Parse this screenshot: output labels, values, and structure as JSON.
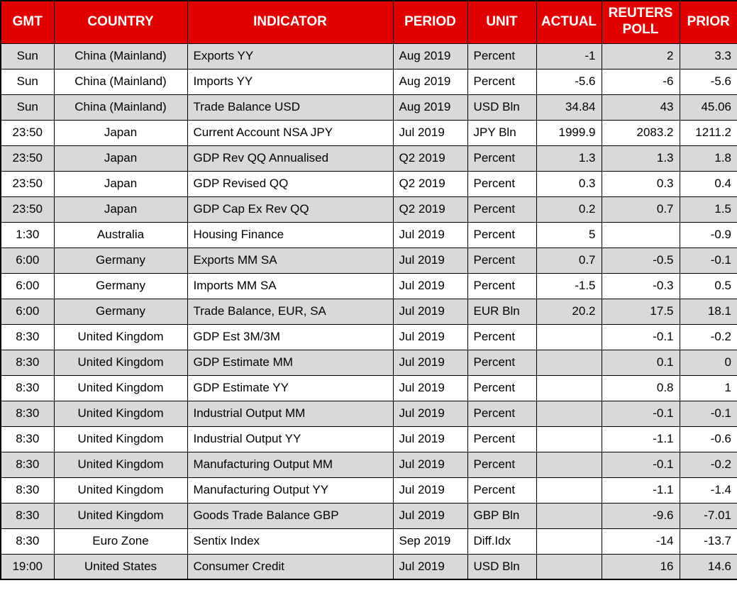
{
  "colors": {
    "header_bg": "#e00000",
    "header_text": "#ffffff",
    "row_alt_bg": "#d9d9d9",
    "row_bg": "#ffffff",
    "border": "#000000"
  },
  "chart_data": {
    "type": "table",
    "title": "",
    "columns": [
      {
        "key": "gmt",
        "label": "GMT"
      },
      {
        "key": "country",
        "label": "COUNTRY"
      },
      {
        "key": "indicator",
        "label": "INDICATOR"
      },
      {
        "key": "period",
        "label": "PERIOD"
      },
      {
        "key": "unit",
        "label": "UNIT"
      },
      {
        "key": "actual",
        "label": "ACTUAL"
      },
      {
        "key": "poll",
        "label": "REUTERS POLL"
      },
      {
        "key": "prior",
        "label": "PRIOR"
      }
    ],
    "rows": [
      {
        "gmt": "Sun",
        "country": "China (Mainland)",
        "indicator": "Exports YY",
        "period": "Aug 2019",
        "unit": "Percent",
        "actual": "-1",
        "poll": "2",
        "prior": "3.3"
      },
      {
        "gmt": "Sun",
        "country": "China (Mainland)",
        "indicator": "Imports YY",
        "period": "Aug 2019",
        "unit": "Percent",
        "actual": "-5.6",
        "poll": "-6",
        "prior": "-5.6"
      },
      {
        "gmt": "Sun",
        "country": "China (Mainland)",
        "indicator": "Trade Balance USD",
        "period": "Aug 2019",
        "unit": "USD Bln",
        "actual": "34.84",
        "poll": "43",
        "prior": "45.06"
      },
      {
        "gmt": "23:50",
        "country": "Japan",
        "indicator": "Current Account NSA JPY",
        "period": "Jul 2019",
        "unit": "JPY Bln",
        "actual": "1999.9",
        "poll": "2083.2",
        "prior": "1211.2"
      },
      {
        "gmt": "23:50",
        "country": "Japan",
        "indicator": "GDP Rev QQ Annualised",
        "period": "Q2 2019",
        "unit": "Percent",
        "actual": "1.3",
        "poll": "1.3",
        "prior": "1.8"
      },
      {
        "gmt": "23:50",
        "country": "Japan",
        "indicator": "GDP Revised QQ",
        "period": "Q2 2019",
        "unit": "Percent",
        "actual": "0.3",
        "poll": "0.3",
        "prior": "0.4"
      },
      {
        "gmt": "23:50",
        "country": "Japan",
        "indicator": "GDP Cap Ex Rev QQ",
        "period": "Q2 2019",
        "unit": "Percent",
        "actual": "0.2",
        "poll": "0.7",
        "prior": "1.5"
      },
      {
        "gmt": "1:30",
        "country": "Australia",
        "indicator": "Housing Finance",
        "period": "Jul 2019",
        "unit": "Percent",
        "actual": "5",
        "poll": "",
        "prior": "-0.9"
      },
      {
        "gmt": "6:00",
        "country": "Germany",
        "indicator": "Exports MM SA",
        "period": "Jul 2019",
        "unit": "Percent",
        "actual": "0.7",
        "poll": "-0.5",
        "prior": "-0.1"
      },
      {
        "gmt": "6:00",
        "country": "Germany",
        "indicator": "Imports MM SA",
        "period": "Jul 2019",
        "unit": "Percent",
        "actual": "-1.5",
        "poll": "-0.3",
        "prior": "0.5"
      },
      {
        "gmt": "6:00",
        "country": "Germany",
        "indicator": "Trade Balance, EUR, SA",
        "period": "Jul 2019",
        "unit": "EUR Bln",
        "actual": "20.2",
        "poll": "17.5",
        "prior": "18.1"
      },
      {
        "gmt": "8:30",
        "country": "United Kingdom",
        "indicator": "GDP Est 3M/3M",
        "period": "Jul 2019",
        "unit": "Percent",
        "actual": "",
        "poll": "-0.1",
        "prior": "-0.2"
      },
      {
        "gmt": "8:30",
        "country": "United Kingdom",
        "indicator": "GDP Estimate MM",
        "period": "Jul 2019",
        "unit": "Percent",
        "actual": "",
        "poll": "0.1",
        "prior": "0"
      },
      {
        "gmt": "8:30",
        "country": "United Kingdom",
        "indicator": "GDP Estimate YY",
        "period": "Jul 2019",
        "unit": "Percent",
        "actual": "",
        "poll": "0.8",
        "prior": "1"
      },
      {
        "gmt": "8:30",
        "country": "United Kingdom",
        "indicator": "Industrial Output MM",
        "period": "Jul 2019",
        "unit": "Percent",
        "actual": "",
        "poll": "-0.1",
        "prior": "-0.1"
      },
      {
        "gmt": "8:30",
        "country": "United Kingdom",
        "indicator": "Industrial Output YY",
        "period": "Jul 2019",
        "unit": "Percent",
        "actual": "",
        "poll": "-1.1",
        "prior": "-0.6"
      },
      {
        "gmt": "8:30",
        "country": "United Kingdom",
        "indicator": "Manufacturing Output MM",
        "period": "Jul 2019",
        "unit": "Percent",
        "actual": "",
        "poll": "-0.1",
        "prior": "-0.2"
      },
      {
        "gmt": "8:30",
        "country": "United Kingdom",
        "indicator": "Manufacturing Output YY",
        "period": "Jul 2019",
        "unit": "Percent",
        "actual": "",
        "poll": "-1.1",
        "prior": "-1.4"
      },
      {
        "gmt": "8:30",
        "country": "United Kingdom",
        "indicator": "Goods Trade Balance GBP",
        "period": "Jul 2019",
        "unit": "GBP Bln",
        "actual": "",
        "poll": "-9.6",
        "prior": "-7.01"
      },
      {
        "gmt": "8:30",
        "country": "Euro Zone",
        "indicator": "Sentix Index",
        "period": "Sep 2019",
        "unit": "Diff.Idx",
        "actual": "",
        "poll": "-14",
        "prior": "-13.7"
      },
      {
        "gmt": "19:00",
        "country": "United States",
        "indicator": "Consumer Credit",
        "period": "Jul 2019",
        "unit": "USD Bln",
        "actual": "",
        "poll": "16",
        "prior": "14.6"
      }
    ]
  }
}
